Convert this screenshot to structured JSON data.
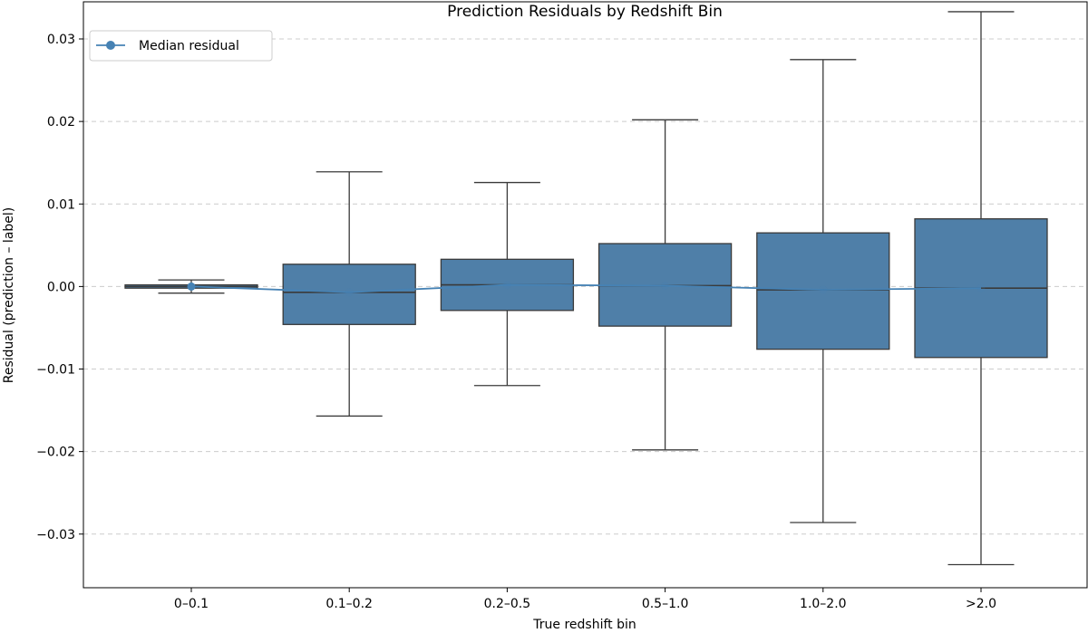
{
  "chart_data": {
    "type": "box",
    "title": "Prediction Residuals by Redshift Bin",
    "xlabel": "True redshift bin",
    "ylabel": "Residual (prediction – label)",
    "categories": [
      "0–0.1",
      "0.1–0.2",
      "0.2–0.5",
      "0.5–1.0",
      "1.0–2.0",
      ">2.0"
    ],
    "ylim": [
      -0.0365,
      0.0345
    ],
    "yticks": [
      -0.03,
      -0.02,
      -0.01,
      0.0,
      0.01,
      0.02,
      0.03
    ],
    "ytick_labels": [
      "−0.03",
      "−0.02",
      "−0.01",
      "0.00",
      "0.01",
      "0.02",
      "0.03"
    ],
    "grid": "y-dashed",
    "legend": {
      "position": "top-left",
      "entries": [
        "Median residual"
      ]
    },
    "boxes": [
      {
        "whisker_low": -0.0008,
        "q1": -0.0002,
        "median": 0.0,
        "q3": 0.0002,
        "whisker_high": 0.0008
      },
      {
        "whisker_low": -0.0157,
        "q1": -0.0046,
        "median": -0.0007,
        "q3": 0.0027,
        "whisker_high": 0.0139
      },
      {
        "whisker_low": -0.012,
        "q1": -0.0029,
        "median": 0.0002,
        "q3": 0.0033,
        "whisker_high": 0.0126
      },
      {
        "whisker_low": -0.0198,
        "q1": -0.0048,
        "median": 0.0001,
        "q3": 0.0052,
        "whisker_high": 0.0202
      },
      {
        "whisker_low": -0.0286,
        "q1": -0.0076,
        "median": -0.0004,
        "q3": 0.0065,
        "whisker_high": 0.0275
      },
      {
        "whisker_low": -0.0337,
        "q1": -0.0086,
        "median": -0.0002,
        "q3": 0.0082,
        "whisker_high": 0.0333
      }
    ],
    "series": [
      {
        "name": "Median residual",
        "values": [
          0.0,
          -0.0007,
          0.0002,
          0.0001,
          -0.0004,
          -0.0002
        ]
      }
    ],
    "colors": {
      "box_fill": "#4f7fa8",
      "box_edge": "#3a3a3a",
      "median_line": "#4682b4",
      "grid": "#cccccc"
    }
  }
}
